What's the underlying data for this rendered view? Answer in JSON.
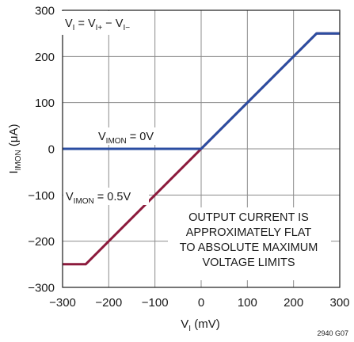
{
  "chart_data": {
    "type": "line",
    "xlabel": "V_I (mV)",
    "ylabel": "I_IMON (μA)",
    "xlim": [
      -300,
      300
    ],
    "ylim": [
      -300,
      300
    ],
    "x_ticks": [
      -300,
      -200,
      -100,
      0,
      100,
      200,
      300
    ],
    "y_ticks": [
      -300,
      -200,
      -100,
      0,
      100,
      200,
      300
    ],
    "x_tick_labels": [
      "−300",
      "−200",
      "−100",
      "0",
      "100",
      "200",
      "300"
    ],
    "y_tick_labels": [
      "−300",
      "−200",
      "−100",
      "0",
      "100",
      "200",
      "300"
    ],
    "grid": true,
    "series": [
      {
        "name": "V_IMON = 0V",
        "color": "#2b4ea2",
        "x": [
          -300,
          0,
          250,
          300
        ],
        "y": [
          0,
          0,
          250,
          250
        ]
      },
      {
        "name": "V_IMON = 0.5V",
        "color": "#8c1a3c",
        "x": [
          -300,
          -250,
          250,
          300
        ],
        "y": [
          -250,
          -250,
          250,
          250
        ]
      }
    ],
    "annotations": {
      "formula": {
        "v1": "V",
        "s1": "I",
        "eq": " = V",
        "s2": "I+",
        "minus": " − V",
        "s3": "I−"
      },
      "label_0v": {
        "main": "V",
        "sub": "IMON",
        "rest": " = 0V"
      },
      "label_05v": {
        "main": "V",
        "sub": "IMON",
        "rest": " = 0.5V"
      },
      "note_lines": [
        "OUTPUT CURRENT IS",
        "APPROXIMATELY FLAT",
        "TO ABSOLUTE MAXIMUM",
        "VOLTAGE LIMITS"
      ]
    },
    "axis_titles": {
      "x": {
        "main": "V",
        "sub": "I",
        "rest": " (mV)"
      },
      "y": {
        "main": "I",
        "sub": "IMON",
        "rest": " (μA)"
      }
    },
    "figure_id": "2940 G07"
  }
}
